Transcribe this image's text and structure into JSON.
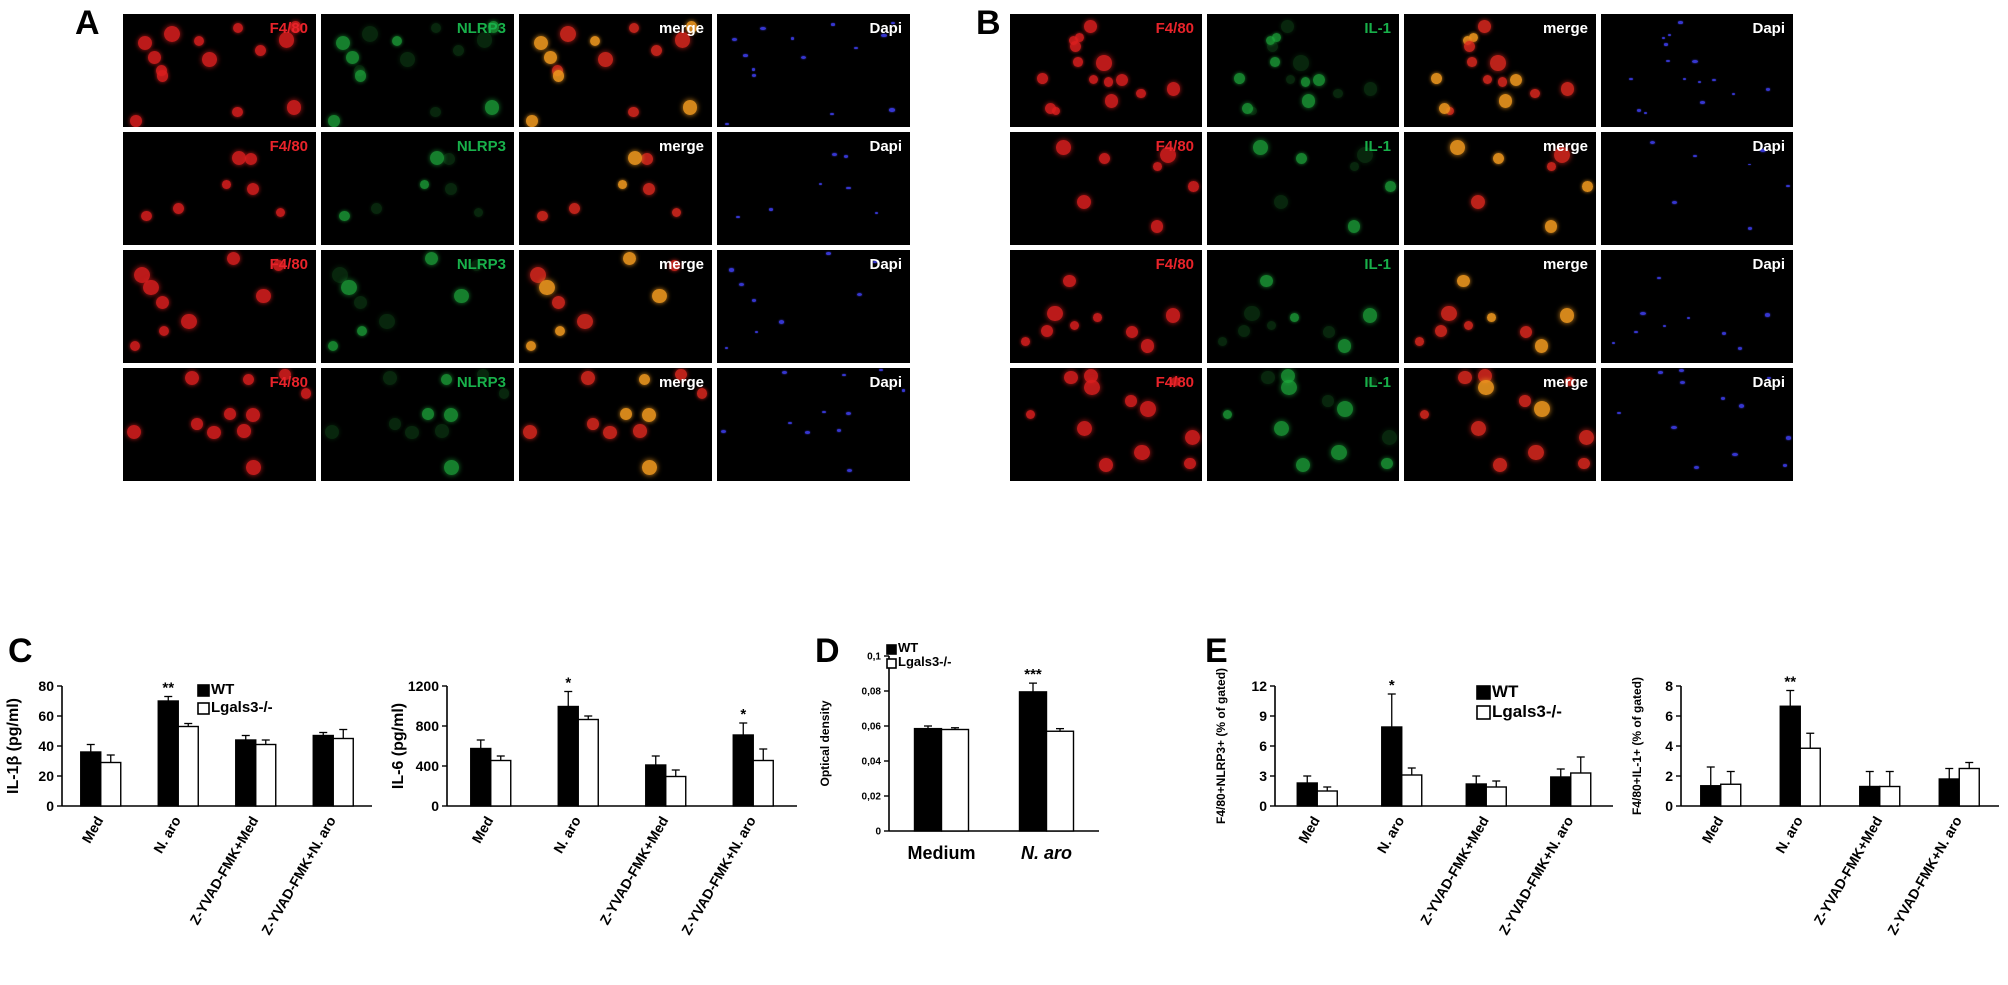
{
  "panel_letters": {
    "A": "A",
    "B": "B",
    "C": "C",
    "D": "D",
    "E": "E"
  },
  "micrographs": {
    "A": {
      "channels": [
        "F4/80",
        "NLRP3",
        "merge",
        "Dapi"
      ],
      "rows": 4
    },
    "B": {
      "channels": [
        "F4/80",
        "IL-1",
        "merge",
        "Dapi"
      ],
      "rows": 4
    }
  },
  "colors": {
    "wt": "#000000",
    "ko": "#ffffff",
    "red_label": "#e8232a",
    "green_label": "#18b04a"
  },
  "chart_data": [
    {
      "id": "C1",
      "type": "bar",
      "categories": [
        "Med",
        "N. aro",
        "Z-YVAD-FMK+Med",
        "Z-YVAD-FMK+N. aro"
      ],
      "series": [
        {
          "name": "WT",
          "values": [
            36,
            70,
            44,
            47
          ],
          "errors": [
            5,
            3,
            3,
            2
          ]
        },
        {
          "name": "Lgals3-/-",
          "values": [
            29,
            53,
            41,
            45
          ],
          "errors": [
            5,
            2,
            3,
            6
          ]
        }
      ],
      "annotations": [
        "",
        "**",
        "",
        ""
      ],
      "ylabel": "IL-1β (pg/ml)",
      "ylim": [
        0,
        80
      ],
      "yticks": [
        "0",
        "20",
        "40",
        "60",
        "80"
      ],
      "legend": "top-right"
    },
    {
      "id": "C2",
      "type": "bar",
      "categories": [
        "Med",
        "N. aro",
        "Z-YVAD-FMK+Med",
        "Z-YVAD-FMK+N. aro"
      ],
      "series": [
        {
          "name": "",
          "values": [
            575,
            995,
            410,
            710
          ],
          "errors": [
            85,
            150,
            90,
            120
          ]
        },
        {
          "name": "",
          "values": [
            455,
            865,
            295,
            455
          ],
          "errors": [
            45,
            35,
            65,
            115
          ]
        }
      ],
      "annotations": [
        "",
        "*",
        "",
        "*"
      ],
      "ylabel": "IL-6 (pg/ml)",
      "ylim": [
        0,
        1200
      ],
      "yticks": [
        "0",
        "400",
        "800",
        "1200"
      ]
    },
    {
      "id": "D",
      "type": "bar",
      "categories": [
        "Medium",
        "N. aro"
      ],
      "series": [
        {
          "name": "WT",
          "values": [
            0.0585,
            0.0795
          ],
          "errors": [
            0.0015,
            0.005
          ]
        },
        {
          "name": "Lgals3-/-",
          "values": [
            0.058,
            0.057
          ],
          "errors": [
            0.001,
            0.0015
          ]
        }
      ],
      "annotations": [
        "",
        "***"
      ],
      "ylabel": "Optical density",
      "ylim": [
        0,
        0.1
      ],
      "yticks": [
        "0",
        "0,02",
        "0,04",
        "0,06",
        "0,08",
        "0,1"
      ],
      "legend": "top-left"
    },
    {
      "id": "E1",
      "type": "bar",
      "categories": [
        "Med",
        "N. aro",
        "Z-YVAD-FMK+Med",
        "Z-YVAD-FMK+N. aro"
      ],
      "series": [
        {
          "name": "WT",
          "values": [
            2.3,
            7.9,
            2.2,
            2.9
          ],
          "errors": [
            0.7,
            3.3,
            0.8,
            0.8
          ]
        },
        {
          "name": "Lgals3-/-",
          "values": [
            1.5,
            3.1,
            1.9,
            3.3
          ],
          "errors": [
            0.4,
            0.7,
            0.6,
            1.6
          ]
        }
      ],
      "annotations": [
        "",
        "*",
        "",
        ""
      ],
      "ylabel": "F4/80+NLRP3+ (% of gated)",
      "ylim": [
        0,
        12
      ],
      "yticks": [
        "0",
        "3",
        "6",
        "9",
        "12"
      ],
      "legend": "top-right"
    },
    {
      "id": "E2",
      "type": "bar",
      "categories": [
        "Med",
        "N. aro",
        "Z-YVAD-FMK+Med",
        "Z-YVAD-FMK+N. aro"
      ],
      "series": [
        {
          "name": "",
          "values": [
            1.35,
            6.65,
            1.3,
            1.8
          ],
          "errors": [
            1.25,
            1.05,
            1.0,
            0.7
          ]
        },
        {
          "name": "",
          "values": [
            1.45,
            3.85,
            1.3,
            2.5
          ],
          "errors": [
            0.85,
            1.0,
            1.0,
            0.4
          ]
        }
      ],
      "annotations": [
        "",
        "**",
        "",
        ""
      ],
      "ylabel": "F4/80+IL-1+ (% of gated)",
      "ylim": [
        0,
        8
      ],
      "yticks": [
        "0",
        "2",
        "4",
        "6",
        "8"
      ]
    }
  ]
}
